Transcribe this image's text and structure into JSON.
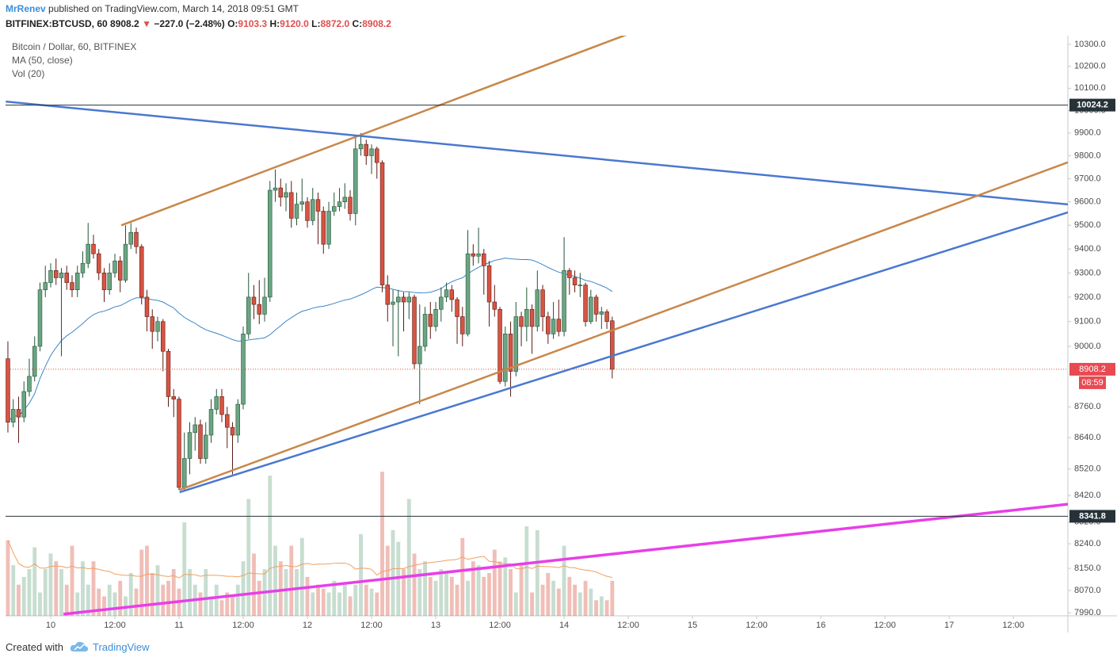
{
  "header": {
    "author": "MrRenev",
    "published": "published on TradingView.com, March 14, 2018 09:51 GMT",
    "symbol": "BITFINEX:BTCUSD, 60",
    "last": "8908.2",
    "arrow": "▼",
    "change": "−227.0 (−2.48%)",
    "ohlc": [
      {
        "label": "O:",
        "value": "9103.3"
      },
      {
        "label": "H:",
        "value": "9120.0"
      },
      {
        "label": "L:",
        "value": "8872.0"
      },
      {
        "label": "C:",
        "value": "8908.2"
      }
    ]
  },
  "legend": [
    "Bitcoin / Dollar, 60, BITFINEX",
    "MA (50, close)",
    "Vol (20)"
  ],
  "footer": {
    "text": "Created with",
    "brand": "TradingView"
  },
  "chart_data": {
    "type": "candlestick",
    "log_scale": true,
    "grid": false,
    "up_color": "#6ba583",
    "down_color": "#d75442",
    "ma_color": "#3d85c6",
    "vol_ma_color": "#f0a060",
    "ma_period": 50,
    "vol_ma_period": 20,
    "xlim": [
      -8.44,
      190.2
    ],
    "xticks": [
      {
        "value": 0,
        "label": "10"
      },
      {
        "value": 12,
        "label": "12:00"
      },
      {
        "value": 24,
        "label": "11"
      },
      {
        "value": 36,
        "label": "12:00"
      },
      {
        "value": 48,
        "label": "12"
      },
      {
        "value": 60,
        "label": "12:00"
      },
      {
        "value": 72,
        "label": "13"
      },
      {
        "value": 84,
        "label": "12:00"
      },
      {
        "value": 96,
        "label": "14"
      },
      {
        "value": 108,
        "label": "12:00"
      },
      {
        "value": 120,
        "label": "15"
      },
      {
        "value": 132,
        "label": "12:00"
      },
      {
        "value": 144,
        "label": "16"
      },
      {
        "value": 156,
        "label": "12:00"
      },
      {
        "value": 168,
        "label": "17"
      },
      {
        "value": 180,
        "label": "12:00"
      }
    ],
    "ylim": [
      7979,
      10340
    ],
    "yticks": [
      {
        "value": 10300,
        "label": "10300.0"
      },
      {
        "value": 10200,
        "label": "10200.0"
      },
      {
        "value": 10100,
        "label": "10100.0"
      },
      {
        "value": 10000,
        "label": "10000.0"
      },
      {
        "value": 9900,
        "label": "9900.0"
      },
      {
        "value": 9800,
        "label": "9800.0"
      },
      {
        "value": 9700,
        "label": "9700.0"
      },
      {
        "value": 9600,
        "label": "9600.0"
      },
      {
        "value": 9500,
        "label": "9500.0"
      },
      {
        "value": 9400,
        "label": "9400.0"
      },
      {
        "value": 9300,
        "label": "9300.0"
      },
      {
        "value": 9200,
        "label": "9200.0"
      },
      {
        "value": 9100,
        "label": "9100.0"
      },
      {
        "value": 9000,
        "label": "9000.0"
      },
      {
        "value": 8760,
        "label": "8760.0"
      },
      {
        "value": 8640,
        "label": "8640.0"
      },
      {
        "value": 8520,
        "label": "8520.0"
      },
      {
        "value": 8420,
        "label": "8420.0"
      },
      {
        "value": 8320,
        "label": "8320.0"
      },
      {
        "value": 8240,
        "label": "8240.0"
      },
      {
        "value": 8150,
        "label": "8150.0"
      },
      {
        "value": 8070,
        "label": "8070.0"
      },
      {
        "value": 7990,
        "label": "7990.0"
      }
    ],
    "volume_ylim": [
      0,
      190
    ],
    "x": [
      -8,
      -7,
      -6,
      -5,
      -4,
      -3,
      -2,
      -1,
      0,
      1,
      2,
      3,
      4,
      5,
      6,
      7,
      8,
      9,
      10,
      11,
      12,
      13,
      14,
      15,
      16,
      17,
      18,
      19,
      20,
      21,
      22,
      23,
      24,
      25,
      26,
      27,
      28,
      29,
      30,
      31,
      32,
      33,
      34,
      35,
      36,
      37,
      38,
      39,
      40,
      41,
      42,
      43,
      44,
      45,
      46,
      47,
      48,
      49,
      50,
      51,
      52,
      53,
      54,
      55,
      56,
      57,
      58,
      59,
      60,
      61,
      62,
      63,
      64,
      65,
      66,
      67,
      68,
      69,
      70,
      71,
      72,
      73,
      74,
      75,
      76,
      77,
      78,
      79,
      80,
      81,
      82,
      83,
      84,
      85,
      86,
      87,
      88,
      89,
      90,
      91,
      92,
      93,
      94,
      95,
      96,
      97,
      98,
      99,
      100,
      101,
      102,
      103,
      104,
      105
    ],
    "open": [
      8950,
      8700,
      8750,
      8720,
      8820,
      8880,
      9000,
      9230,
      9260,
      9310,
      9280,
      9300,
      9260,
      9230,
      9300,
      9340,
      9420,
      9380,
      9300,
      9230,
      9300,
      9350,
      9270,
      9420,
      9470,
      9410,
      9200,
      9120,
      9060,
      9100,
      8980,
      8800,
      8790,
      8450,
      8560,
      8660,
      8690,
      8560,
      8650,
      8750,
      8800,
      8730,
      8680,
      8650,
      8770,
      9050,
      9200,
      9170,
      9130,
      9200,
      9650,
      9660,
      9620,
      9640,
      9530,
      9590,
      9600,
      9520,
      9610,
      9560,
      9420,
      9560,
      9580,
      9600,
      9620,
      9550,
      9830,
      9850,
      9800,
      9830,
      9770,
      9250,
      9170,
      9180,
      9200,
      9180,
      9200,
      8930,
      9000,
      9130,
      9080,
      9150,
      9200,
      9230,
      9190,
      9120,
      9050,
      9380,
      9370,
      9380,
      9330,
      9180,
      9150,
      8860,
      9050,
      8900,
      9120,
      9080,
      9150,
      9080,
      9230,
      9120,
      9050,
      9110,
      9060,
      9310,
      9280,
      9250,
      9250,
      9100,
      9200,
      9130,
      9140,
      9103.3
    ],
    "high": [
      9020,
      8790,
      8800,
      8860,
      8950,
      9040,
      9260,
      9330,
      9340,
      9360,
      9320,
      9330,
      9290,
      9330,
      9390,
      9510,
      9460,
      9400,
      9320,
      9340,
      9380,
      9370,
      9500,
      9510,
      9490,
      9420,
      9230,
      9150,
      9120,
      9110,
      8990,
      8830,
      8800,
      8660,
      8700,
      8720,
      8710,
      8700,
      8790,
      8830,
      8830,
      8760,
      8700,
      8790,
      9080,
      9300,
      9250,
      9270,
      9280,
      9690,
      9740,
      9700,
      9680,
      9690,
      9640,
      9700,
      9620,
      9660,
      9640,
      9580,
      9600,
      9640,
      9660,
      9680,
      9650,
      9880,
      9900,
      9870,
      9850,
      9840,
      9780,
      9290,
      9230,
      9230,
      9220,
      9220,
      9210,
      9170,
      9160,
      9180,
      9180,
      9240,
      9260,
      9250,
      9200,
      9160,
      9480,
      9420,
      9490,
      9400,
      9350,
      9250,
      9160,
      9080,
      9100,
      9180,
      9140,
      9240,
      9170,
      9310,
      9250,
      9140,
      9180,
      9190,
      9450,
      9320,
      9310,
      9300,
      9260,
      9230,
      9210,
      9160,
      9150,
      9120
    ],
    "low": [
      8660,
      8680,
      8620,
      8700,
      8800,
      8860,
      8980,
      9200,
      9240,
      9250,
      8960,
      9230,
      9200,
      9200,
      9280,
      9320,
      9360,
      9270,
      9180,
      9210,
      9280,
      9220,
      9260,
      9400,
      9380,
      9170,
      9060,
      8990,
      9020,
      8900,
      8760,
      8720,
      8440,
      8440,
      8500,
      8590,
      8540,
      8540,
      8620,
      8730,
      8700,
      8600,
      8500,
      8620,
      8750,
      9030,
      9110,
      9090,
      9100,
      9180,
      9600,
      9580,
      9560,
      9490,
      9500,
      9560,
      9490,
      9500,
      9420,
      9380,
      9400,
      9540,
      9560,
      9570,
      9520,
      9500,
      9800,
      9760,
      9720,
      9700,
      9220,
      9100,
      9000,
      8960,
      9060,
      9110,
      8910,
      8770,
      8980,
      9030,
      9060,
      9100,
      9180,
      9140,
      9010,
      9000,
      9040,
      9330,
      9340,
      9210,
      9080,
      9120,
      8850,
      8840,
      8800,
      8880,
      9000,
      9020,
      8970,
      9060,
      9060,
      9010,
      9030,
      9040,
      9040,
      9210,
      9220,
      9200,
      9080,
      9090,
      9100,
      9070,
      9070,
      8872
    ],
    "close": [
      8700,
      8750,
      8720,
      8820,
      8880,
      9000,
      9230,
      9260,
      9310,
      9280,
      9300,
      9260,
      9230,
      9300,
      9340,
      9420,
      9380,
      9300,
      9230,
      9300,
      9350,
      9270,
      9420,
      9470,
      9410,
      9200,
      9120,
      9060,
      9100,
      8980,
      8800,
      8790,
      8450,
      8560,
      8660,
      8690,
      8560,
      8650,
      8750,
      8800,
      8730,
      8680,
      8650,
      8770,
      9050,
      9200,
      9170,
      9130,
      9200,
      9650,
      9660,
      9620,
      9640,
      9530,
      9590,
      9600,
      9520,
      9610,
      9560,
      9420,
      9560,
      9580,
      9600,
      9620,
      9550,
      9830,
      9850,
      9800,
      9830,
      9770,
      9250,
      9170,
      9180,
      9200,
      9180,
      9200,
      8930,
      9000,
      9130,
      9080,
      9150,
      9200,
      9230,
      9190,
      9120,
      9050,
      9380,
      9370,
      9380,
      9330,
      9180,
      9150,
      8860,
      9050,
      8900,
      9120,
      9080,
      9150,
      9080,
      9230,
      9120,
      9050,
      9110,
      9060,
      9310,
      9280,
      9250,
      9250,
      9100,
      9200,
      9130,
      9140,
      9100,
      8908.2
    ],
    "volume": [
      97,
      65,
      40,
      50,
      60,
      88,
      30,
      60,
      80,
      70,
      60,
      40,
      90,
      30,
      70,
      40,
      70,
      35,
      25,
      40,
      30,
      45,
      25,
      55,
      35,
      85,
      90,
      55,
      65,
      40,
      45,
      60,
      35,
      120,
      60,
      40,
      30,
      60,
      25,
      40,
      20,
      30,
      25,
      40,
      70,
      150,
      80,
      45,
      60,
      180,
      90,
      70,
      60,
      90,
      60,
      100,
      50,
      30,
      40,
      35,
      30,
      45,
      30,
      40,
      25,
      40,
      105,
      40,
      35,
      30,
      185,
      90,
      110,
      95,
      60,
      150,
      80,
      60,
      70,
      50,
      45,
      60,
      55,
      50,
      40,
      100,
      45,
      70,
      65,
      50,
      55,
      85,
      70,
      75,
      60,
      30,
      65,
      115,
      30,
      110,
      40,
      55,
      45,
      35,
      90,
      50,
      40,
      30,
      45,
      35,
      20,
      25,
      20,
      45
    ],
    "countdown": "08:59",
    "hlines": [
      {
        "value": 10024.2,
        "color": "#263238"
      },
      {
        "value": 8341.8,
        "color": "#263238"
      }
    ],
    "trendlines": [
      {
        "x": [
          13.2,
          107.6
        ],
        "y": [
          9500,
          10344
        ],
        "color": "#c8874a",
        "width": 2.5
      },
      {
        "x": [
          -8.4,
          190.2
        ],
        "y": [
          10040,
          9589
        ],
        "color": "#4a78d0",
        "width": 2.5
      },
      {
        "x": [
          24.1,
          190.2
        ],
        "y": [
          8441,
          9771
        ],
        "color": "#c8874a",
        "width": 2.5
      },
      {
        "x": [
          24.1,
          190.2
        ],
        "y": [
          8432,
          9555
        ],
        "color": "#4a78d0",
        "width": 2.5
      },
      {
        "x": [
          2.4,
          190.2
        ],
        "y": [
          7985,
          8387
        ],
        "color": "#e83ee8",
        "width": 3.5
      }
    ]
  }
}
